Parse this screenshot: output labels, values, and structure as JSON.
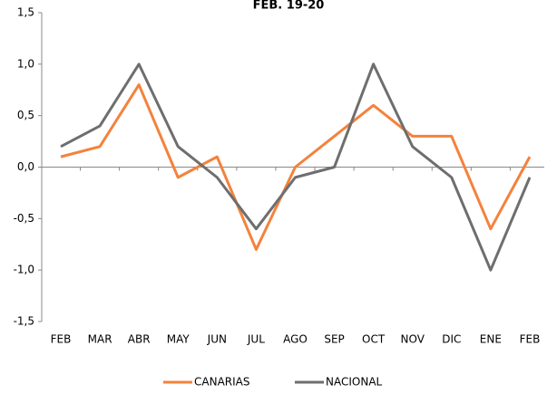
{
  "chart_data": {
    "type": "line",
    "title": "FEB. 19-20",
    "categories": [
      "FEB",
      "MAR",
      "ABR",
      "MAY",
      "JUN",
      "JUL",
      "AGO",
      "SEP",
      "OCT",
      "NOV",
      "DIC",
      "ENE",
      "FEB"
    ],
    "series": [
      {
        "name": "CANARIAS",
        "color": "#f4823c",
        "values": [
          0.1,
          0.2,
          0.8,
          -0.1,
          0.1,
          -0.8,
          0.0,
          0.3,
          0.6,
          0.3,
          0.3,
          -0.6,
          0.1
        ]
      },
      {
        "name": "NACIONAL",
        "color": "#6e6e6e",
        "values": [
          0.2,
          0.4,
          1.0,
          0.2,
          -0.1,
          -0.6,
          -0.1,
          0.0,
          1.0,
          0.2,
          -0.1,
          -1.0,
          -0.1
        ]
      }
    ],
    "ylim": [
      -1.5,
      1.5
    ],
    "yticks": [
      {
        "value": -1.5,
        "label": "-1,5"
      },
      {
        "value": -1.0,
        "label": "-1,0"
      },
      {
        "value": -0.5,
        "label": "-0,5"
      },
      {
        "value": 0,
        "label": "0,0"
      },
      {
        "value": 0.5,
        "label": "0,5"
      },
      {
        "value": 1.0,
        "label": "1,0"
      },
      {
        "value": 1.5,
        "label": "1,5"
      }
    ],
    "legend": "bottom"
  }
}
